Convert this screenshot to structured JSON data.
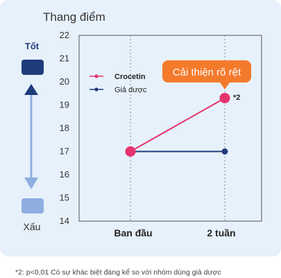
{
  "chart_data": {
    "type": "line",
    "title": "",
    "xlabel": "",
    "ylabel": "Thang điểm",
    "categories": [
      "Ban đầu",
      "2 tuần"
    ],
    "ylim": [
      14,
      22
    ],
    "yticks": [
      14,
      15,
      16,
      17,
      18,
      19,
      20,
      21,
      22
    ],
    "grid": {
      "vertical_dashed": true
    },
    "legend": {
      "placement": "top-left"
    },
    "series": [
      {
        "name": "Crocetin",
        "values": [
          17,
          19.3
        ],
        "color": "#e5336e",
        "marker": "#e5336e"
      },
      {
        "name": "Giả dược",
        "values": [
          17,
          17
        ],
        "color": "#1f3b7c",
        "marker": "#23397a"
      }
    ],
    "annotations": {
      "callout": "Cải thiện rõ rệt",
      "callout_color": "#f47a2c",
      "significance": "*2"
    },
    "scale_indicator": {
      "top_label": "Tốt",
      "bottom_label": "Xấu",
      "top_color": "#1f3b7c",
      "bottom_color": "#8eaee0"
    }
  },
  "footnote": "*2: p<0,01 Có sự khác biệt đáng kể so với nhóm dùng giả dược"
}
